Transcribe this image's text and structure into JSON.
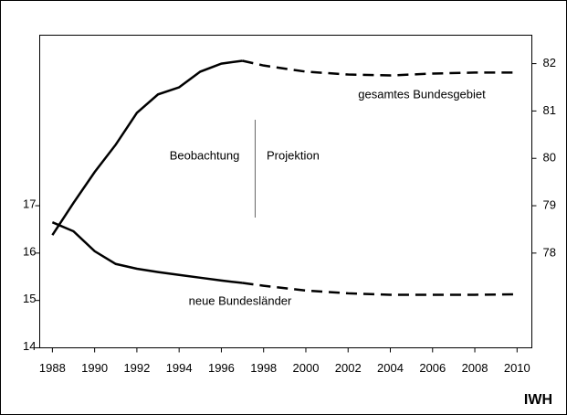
{
  "chart_data": {
    "type": "line",
    "x": [
      1988,
      1989,
      1990,
      1991,
      1992,
      1993,
      1994,
      1995,
      1996,
      1997,
      1998,
      2000,
      2002,
      2004,
      2006,
      2008,
      2010
    ],
    "series": [
      {
        "name": "gesamtes Bundesgebiet",
        "color": "#000000",
        "axis": "y2",
        "values": [
          78.38,
          79.06,
          79.71,
          80.29,
          80.96,
          81.35,
          81.5,
          81.83,
          82.0,
          82.06,
          81.96,
          81.83,
          81.77,
          81.75,
          81.79,
          81.81,
          81.81
        ]
      },
      {
        "name": "neue Bundesländer",
        "color": "#000000",
        "values": [
          16.65,
          16.46,
          16.04,
          15.77,
          15.67,
          15.6,
          15.54,
          15.48,
          15.42,
          15.37,
          15.31,
          15.21,
          15.15,
          15.12,
          15.12,
          15.12,
          15.13
        ]
      }
    ],
    "annotations": {
      "observation": "Beobachtung",
      "projection": "Projektion",
      "source": "IWH"
    },
    "projection_start": 1997.6,
    "xlim": [
      1987.4,
      2010.7
    ],
    "xticks": [
      1988,
      1990,
      1992,
      1994,
      1996,
      1998,
      2000,
      2002,
      2004,
      2006,
      2008,
      2010
    ],
    "ylim": [
      14,
      20.6
    ],
    "yticks": [
      14,
      15,
      16,
      17
    ],
    "y2lim": [
      76,
      82.6
    ],
    "y2ticks": [
      78,
      79,
      80,
      81,
      82
    ]
  }
}
